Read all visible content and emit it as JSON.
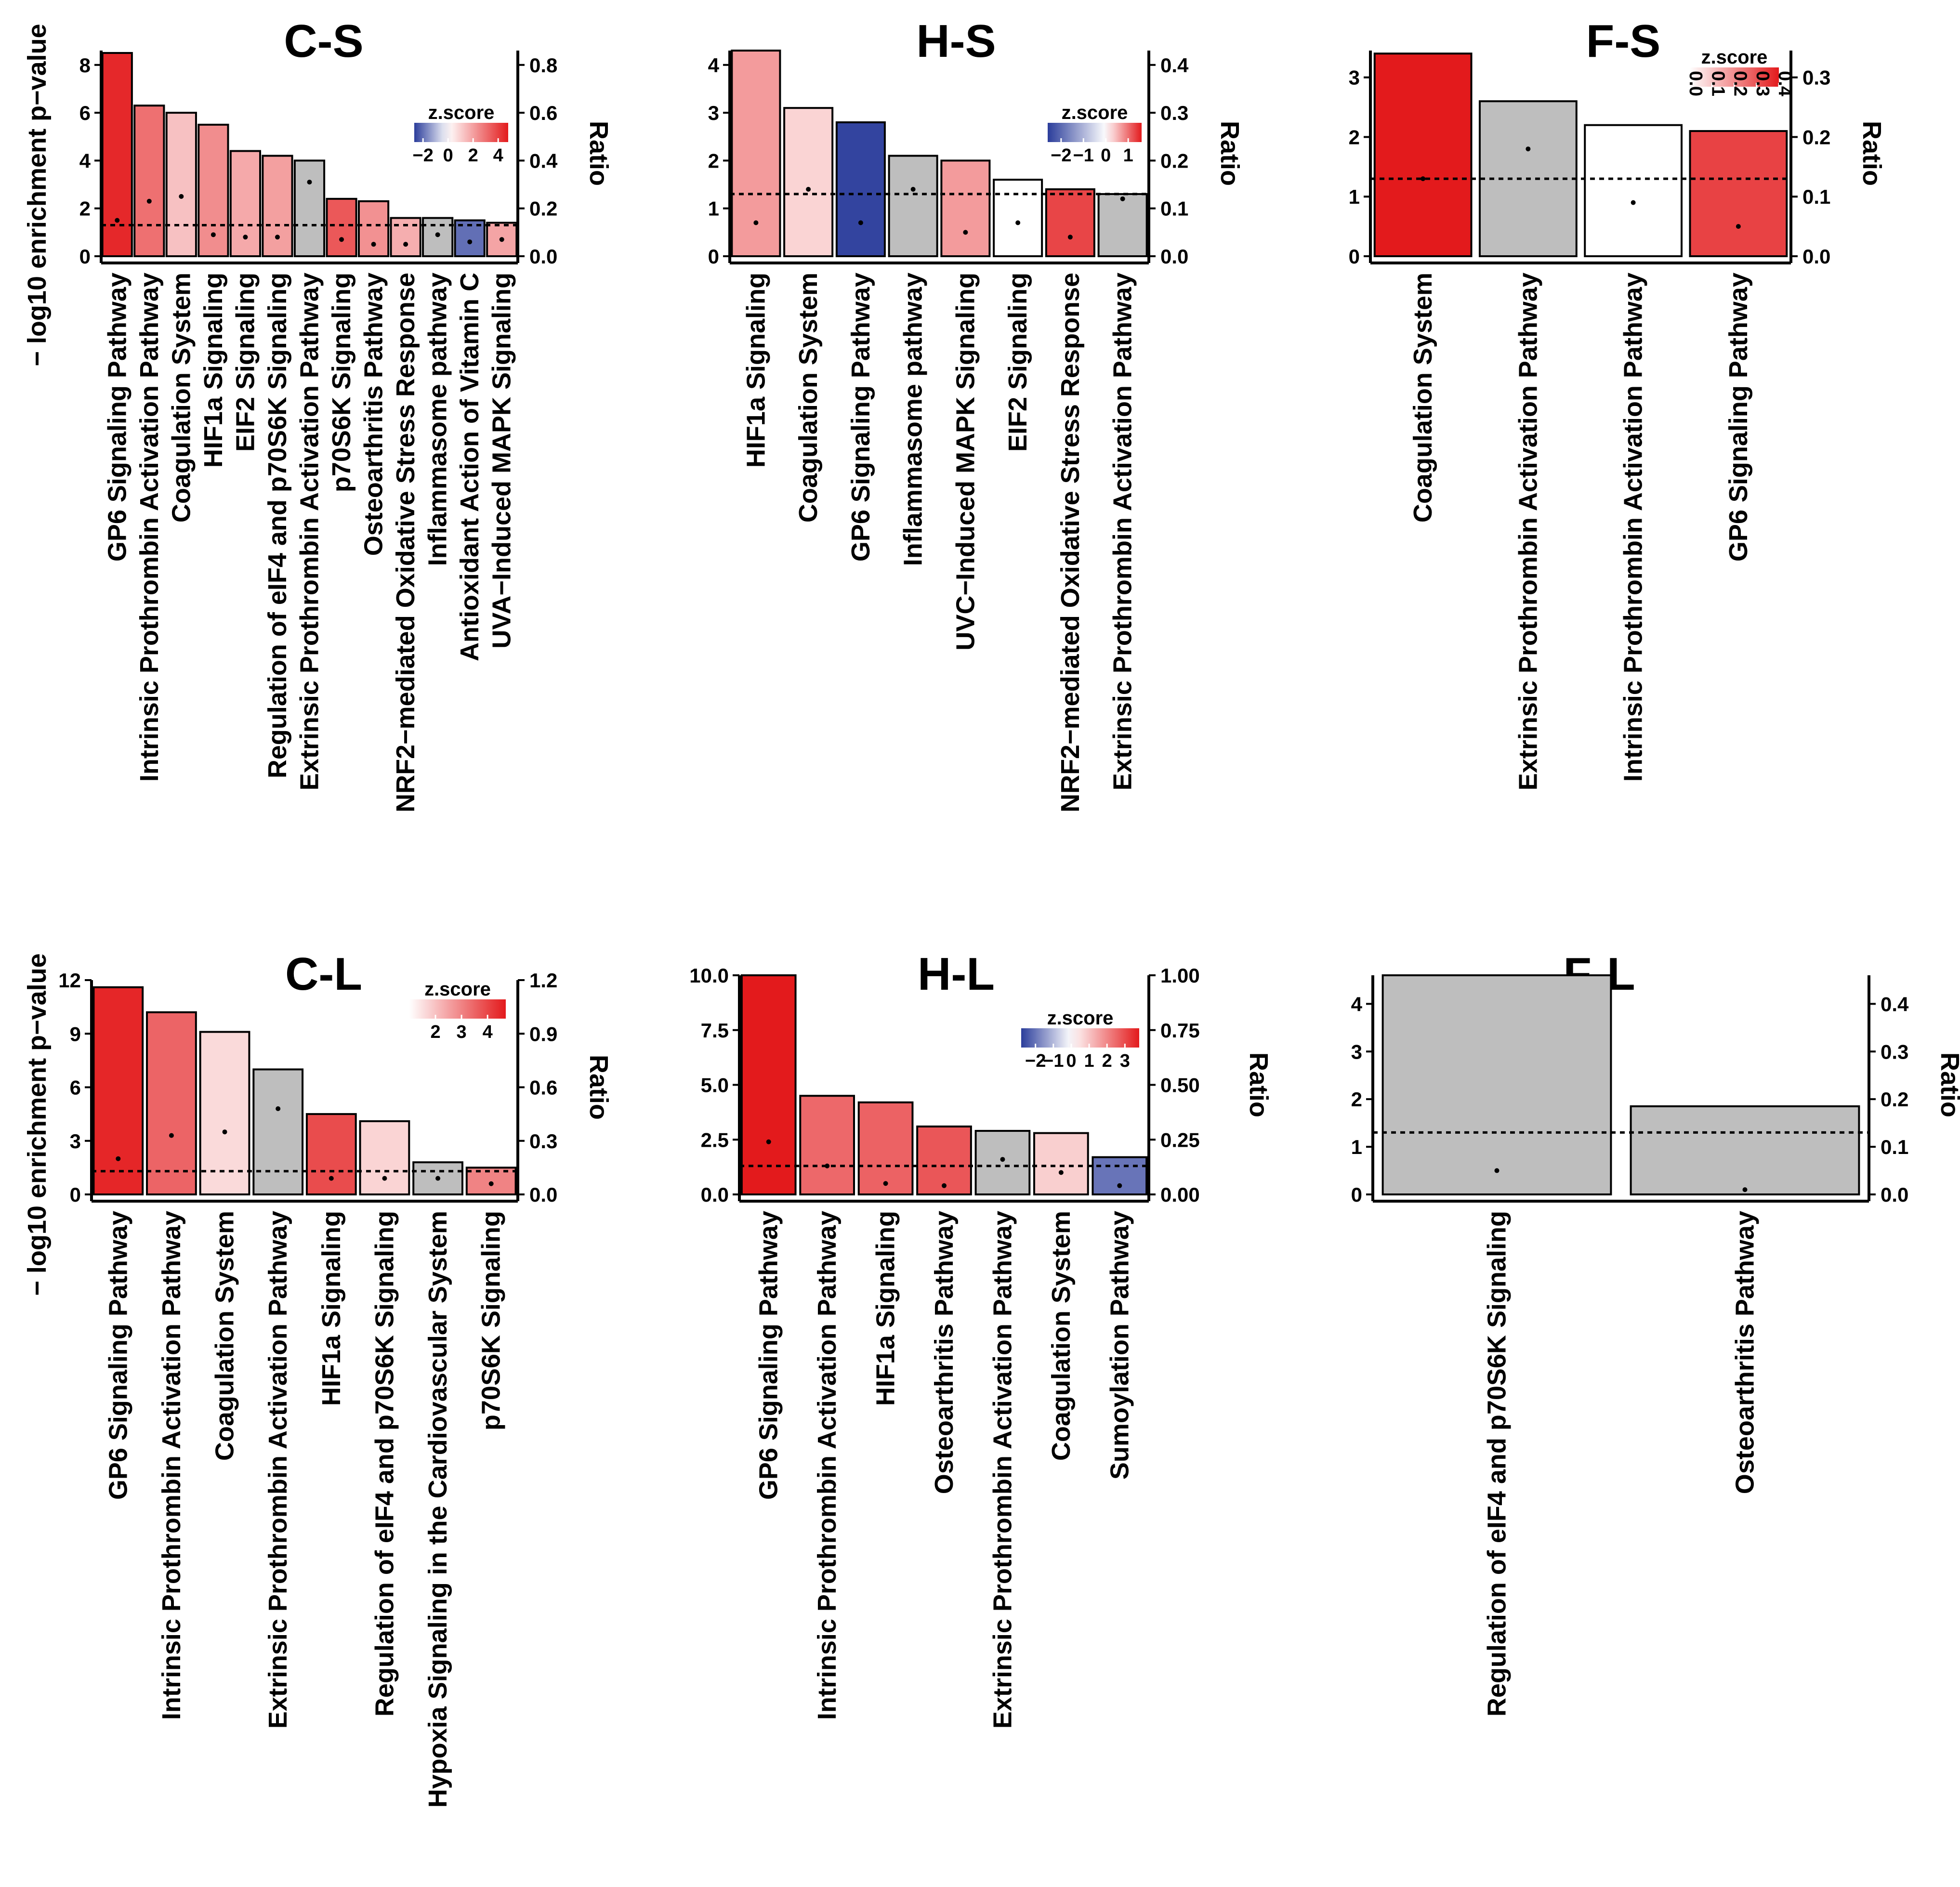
{
  "chart_data": [
    {
      "id": "CS",
      "type": "bar",
      "title": "C-S",
      "ylabel": "− log10 enrichment p−value",
      "y2label": "Ratio",
      "ylim": [
        0,
        8.6
      ],
      "yticks": [
        0,
        2,
        4,
        6,
        8
      ],
      "ytick_labels": [
        "0",
        "2",
        "4",
        "6",
        "8"
      ],
      "y2lim": [
        0,
        0.86
      ],
      "y2ticks": [
        0,
        0.2,
        0.4,
        0.6,
        0.8
      ],
      "y2tick_labels": [
        "0.0",
        "0.2",
        "0.4",
        "0.6",
        "0.8"
      ],
      "threshold": 1.3,
      "categories": [
        "GP6 Signaling Pathway",
        "Intrinsic Prothrombin Activation Pathway",
        "Coagulation System",
        "HIF1a Signaling",
        "EIF2 Signaling",
        "Regulation of eIF4 and p70S6K Signaling",
        "Extrinsic Prothrombin Activation Pathway",
        "p70S6K Signaling",
        "Osteoarthritis Pathway",
        "NRF2−mediated Oxidative Stress Response",
        "Inflammasome pathway",
        "Antioxidant Action of Vitamin C",
        "UVA−Induced MAPK Signaling"
      ],
      "values": [
        8.5,
        6.3,
        6.0,
        5.5,
        4.4,
        4.2,
        4.0,
        2.4,
        2.3,
        1.6,
        1.6,
        1.5,
        1.4
      ],
      "ratio": [
        0.15,
        0.23,
        0.25,
        0.09,
        0.08,
        0.08,
        0.31,
        0.07,
        0.05,
        0.05,
        0.09,
        0.06,
        0.07
      ],
      "zscore": [
        4.5,
        3.0,
        1.3,
        2.4,
        1.8,
        2.0,
        null,
        3.5,
        2.3,
        1.7,
        null,
        -2.0,
        1.9
      ],
      "legend": {
        "title": "z.score",
        "ticks": [
          -2,
          0,
          2,
          4
        ],
        "tick_labels": [
          "−2",
          "0",
          "2",
          "4"
        ],
        "min": -2.7,
        "max": 4.8
      }
    },
    {
      "id": "HS",
      "type": "bar",
      "title": "H-S",
      "ylabel": "",
      "y2label": "Ratio",
      "ylim": [
        0,
        4.3
      ],
      "yticks": [
        0,
        1,
        2,
        3,
        4
      ],
      "ytick_labels": [
        "0",
        "1",
        "2",
        "3",
        "4"
      ],
      "y2lim": [
        0,
        0.43
      ],
      "y2ticks": [
        0,
        0.1,
        0.2,
        0.3,
        0.4
      ],
      "y2tick_labels": [
        "0.0",
        "0.1",
        "0.2",
        "0.3",
        "0.4"
      ],
      "threshold": 1.3,
      "categories": [
        "HIF1a Signaling",
        "Coagulation System",
        "GP6 Signaling Pathway",
        "Inflammasome pathway",
        "UVC−Induced MAPK Signaling",
        "EIF2 Signaling",
        "NRF2−mediated Oxidative Stress Response",
        "Extrinsic Prothrombin Activation Pathway"
      ],
      "values": [
        4.3,
        3.1,
        2.8,
        2.1,
        2.0,
        1.6,
        1.4,
        1.3
      ],
      "ratio": [
        0.07,
        0.14,
        0.07,
        0.14,
        0.05,
        0.07,
        0.04,
        0.12
      ],
      "zscore": [
        0.7,
        0.3,
        -2.5,
        null,
        0.7,
        0.0,
        1.3,
        null
      ],
      "legend": {
        "title": "z.score",
        "ticks": [
          -2,
          -1,
          0,
          1
        ],
        "tick_labels": [
          "−2",
          "−1",
          "0",
          "1"
        ],
        "min": -2.6,
        "max": 1.6
      }
    },
    {
      "id": "FS",
      "type": "bar",
      "title": "F-S",
      "ylabel": "",
      "y2label": "Ratio",
      "ylim": [
        0,
        3.45
      ],
      "yticks": [
        0,
        1,
        2,
        3
      ],
      "ytick_labels": [
        "0",
        "1",
        "2",
        "3"
      ],
      "y2lim": [
        0,
        0.345
      ],
      "y2ticks": [
        0,
        0.1,
        0.2,
        0.3
      ],
      "y2tick_labels": [
        "0.0",
        "0.1",
        "0.2",
        "0.3"
      ],
      "threshold": 1.3,
      "categories": [
        "Coagulation System",
        "Extrinsic Prothrombin Activation Pathway",
        "Intrinsic Prothrombin Activation Pathway",
        "GP6 Signaling Pathway"
      ],
      "values": [
        3.4,
        2.6,
        2.2,
        2.1
      ],
      "ratio": [
        0.13,
        0.18,
        0.09,
        0.05
      ],
      "zscore": [
        0.4,
        null,
        0.0,
        0.33
      ],
      "legend": {
        "title": "z.score",
        "ticks": [
          0.0,
          0.1,
          0.2,
          0.3,
          0.4
        ],
        "tick_labels": [
          "0.0",
          "0.1",
          "0.2",
          "0.3",
          "0.4"
        ],
        "min": 0.0,
        "max": 0.4
      }
    },
    {
      "id": "CL",
      "type": "bar",
      "title": "C-L",
      "ylabel": "− log10 enrichment p−value",
      "y2label": "Ratio",
      "ylim": [
        0,
        12.0
      ],
      "yticks": [
        0,
        3,
        6,
        9,
        12
      ],
      "ytick_labels": [
        "0",
        "3",
        "6",
        "9",
        "12"
      ],
      "y2lim": [
        0,
        1.2
      ],
      "y2ticks": [
        0,
        0.3,
        0.6,
        0.9,
        1.2
      ],
      "y2tick_labels": [
        "0.0",
        "0.3",
        "0.6",
        "0.9",
        "1.2"
      ],
      "threshold": 1.3,
      "categories": [
        "GP6 Signaling Pathway",
        "Intrinsic Prothrombin Activation Pathway",
        "Coagulation System",
        "Extrinsic Prothrombin Activation Pathway",
        "HIF1a Signaling",
        "Regulation of eIF4 and p70S6K Signaling",
        "Hypoxia Signaling in the Cardiovascular System",
        "p70S6K Signaling"
      ],
      "values": [
        11.6,
        10.2,
        9.1,
        7.0,
        4.5,
        4.1,
        1.8,
        1.5
      ],
      "ratio": [
        0.2,
        0.33,
        0.35,
        0.48,
        0.09,
        0.09,
        0.09,
        0.06
      ],
      "zscore": [
        4.5,
        3.5,
        1.6,
        null,
        3.9,
        1.7,
        null,
        3.0
      ],
      "legend": {
        "title": "z.score",
        "ticks": [
          2,
          3,
          4
        ],
        "tick_labels": [
          "2",
          "3",
          "4"
        ],
        "min": 1.0,
        "max": 4.7
      }
    },
    {
      "id": "HL",
      "type": "bar",
      "title": "H-L",
      "ylabel": "",
      "y2label": "Ratio",
      "ylim": [
        0,
        10.0
      ],
      "yticks": [
        0,
        2.5,
        5.0,
        7.5,
        10.0
      ],
      "ytick_labels": [
        "0.0",
        "2.5",
        "5.0",
        "7.5",
        "10.0"
      ],
      "y2lim": [
        0,
        1.0
      ],
      "y2ticks": [
        0,
        0.25,
        0.5,
        0.75,
        1.0
      ],
      "y2tick_labels": [
        "0.00",
        "0.25",
        "0.50",
        "0.75",
        "1.00"
      ],
      "threshold": 1.3,
      "categories": [
        "GP6 Signaling Pathway",
        "Intrinsic Prothrombin Activation Pathway",
        "HIF1a Signaling",
        "Osteoarthritis Pathway",
        "Extrinsic Prothrombin Activation Pathway",
        "Coagulation System",
        "Sumoylation Pathway"
      ],
      "values": [
        10.0,
        4.5,
        4.2,
        3.1,
        2.9,
        2.8,
        1.7
      ],
      "ratio": [
        0.24,
        0.13,
        0.05,
        0.04,
        0.16,
        0.1,
        0.04
      ],
      "zscore": [
        3.8,
        2.5,
        2.6,
        2.8,
        null,
        0.8,
        -2.0
      ],
      "legend": {
        "title": "z.score",
        "ticks": [
          -2,
          -1,
          0,
          1,
          2,
          3
        ],
        "tick_labels": [
          "−2",
          "−1",
          "0",
          "1",
          "2",
          "3"
        ],
        "min": -2.8,
        "max": 3.8
      }
    },
    {
      "id": "FL",
      "type": "bar",
      "title": "F-L",
      "ylabel": "",
      "y2label": "Ratio",
      "ylim": [
        0,
        4.6
      ],
      "yticks": [
        0,
        1,
        2,
        3,
        4
      ],
      "ytick_labels": [
        "0",
        "1",
        "2",
        "3",
        "4"
      ],
      "y2lim": [
        0,
        0.46
      ],
      "y2ticks": [
        0,
        0.1,
        0.2,
        0.3,
        0.4
      ],
      "y2tick_labels": [
        "0.0",
        "0.1",
        "0.2",
        "0.3",
        "0.4"
      ],
      "threshold": 1.3,
      "categories": [
        "Regulation of eIF4 and p70S6K Signaling",
        "Osteoarthritis Pathway"
      ],
      "values": [
        4.6,
        1.85
      ],
      "ratio": [
        0.05,
        0.01
      ],
      "zscore": [
        null,
        null
      ],
      "legend": null
    }
  ],
  "colors": {
    "negative": "#2b3d9b",
    "neutral": "#ffffff",
    "positive": "#e31a1c",
    "na": "#bebebe",
    "threshold": "#000000"
  }
}
